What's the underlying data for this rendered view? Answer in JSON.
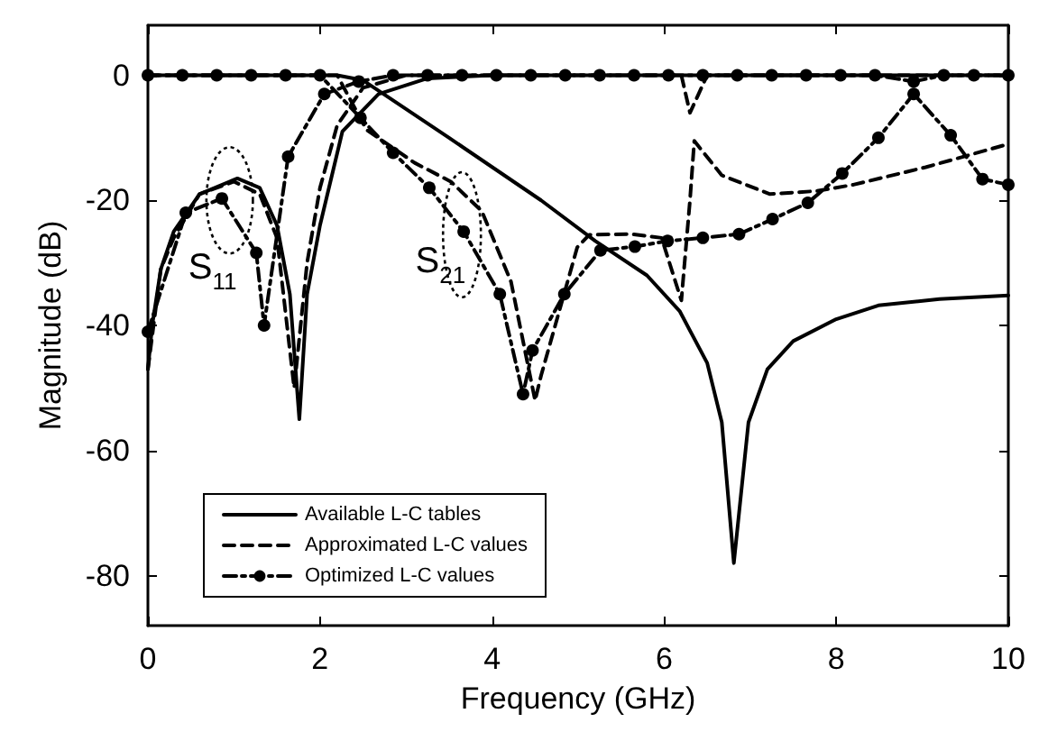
{
  "chart_data": {
    "type": "line",
    "xlabel": "Frequency (GHz)",
    "ylabel": "Magnitude (dB)",
    "xlim": [
      0,
      10
    ],
    "xticks": [
      0,
      2,
      4,
      6,
      8,
      10
    ],
    "ylim": [
      -88,
      8
    ],
    "yticks": [
      0,
      -20,
      -40,
      -60,
      -80
    ],
    "grid": false,
    "legend": "bottom left",
    "annotations": [
      "S$_{11}$",
      "S$_{21}$"
    ],
    "series": [
      {
        "name": "Available L-C tables",
        "color": "#000000",
        "line_style": "solid",
        "marker": "none",
        "x": [
          0,
          0.05,
          0.15,
          0.3,
          0.6,
          1.04,
          1.3,
          1.5,
          1.65,
          1.76,
          1.85,
          2.0,
          2.26,
          2.68,
          3.25,
          4,
          10
        ],
        "values": [
          -47,
          -40,
          -31,
          -25,
          -19,
          -16.5,
          -18,
          -24,
          -35,
          -55,
          -35,
          -24,
          -9,
          -3,
          -0.5,
          0,
          0
        ]
      },
      {
        "color": "#000000",
        "line_style": "solid",
        "marker": "none",
        "x": [
          0,
          2.2,
          2.5,
          2.74,
          3.5,
          4.57,
          5.2,
          5.8,
          6.18,
          6.5,
          6.67,
          6.81,
          6.98,
          7.2,
          7.5,
          8.0,
          8.49,
          9.2,
          10
        ],
        "values": [
          0,
          0,
          -0.8,
          -3,
          -10,
          -20,
          -26.5,
          -32,
          -37.7,
          -46,
          -55.5,
          -78,
          -55.5,
          -47,
          -42.5,
          -39,
          -36.8,
          -35.8,
          -35.2
        ]
      },
      {
        "name": "Approximated L-C values",
        "color": "#000000",
        "line_style": "dashed",
        "marker": "none",
        "x": [
          0,
          0.15,
          0.3,
          0.6,
          1.0,
          1.3,
          1.5,
          1.7,
          1.85,
          2.0,
          2.2,
          2.5,
          3,
          6.2,
          6.3,
          6.4,
          6.5,
          10
        ],
        "values": [
          -47,
          -31,
          -26,
          -19,
          -17,
          -19,
          -26,
          -50,
          -30,
          -18,
          -8,
          -2,
          0,
          0,
          -6,
          -3,
          0,
          0
        ]
      },
      {
        "color": "#000000",
        "line_style": "dashed",
        "marker": "none",
        "x": [
          0,
          2.2,
          2.54,
          3.1,
          3.52,
          3.88,
          4.22,
          4.5,
          4.57,
          4.99,
          5.13,
          5.62,
          5.97,
          6.2,
          6.3,
          6.35,
          6.67,
          7.23,
          7.78,
          8.2,
          9.04,
          10
        ],
        "values": [
          0,
          0,
          -8.7,
          -14,
          -17,
          -21.7,
          -33,
          -52,
          -48,
          -27.5,
          -25.5,
          -25.4,
          -26,
          -36,
          -20,
          -10.5,
          -16,
          -19,
          -18.5,
          -17.5,
          -14.7,
          -11
        ]
      },
      {
        "name": "Optimized L-C values",
        "color": "#000000",
        "line_style": "dotted",
        "marker": "circle",
        "x": [
          0,
          0.44,
          0.86,
          1.26,
          1.35,
          1.63,
          2.05,
          2.45,
          2.85,
          3.25,
          3.65,
          4.05,
          4.45,
          4.85,
          5.25,
          5.65,
          6.05,
          6.45,
          6.85,
          7.25,
          7.65,
          8.05,
          8.45,
          8.9,
          9.25,
          9.6,
          10
        ],
        "values": [
          -41,
          -22,
          -19.7,
          -28.4,
          -40,
          -13,
          -3,
          -1,
          0,
          0,
          0,
          0,
          0,
          0,
          0,
          0,
          0,
          0,
          0,
          0,
          0,
          0,
          0,
          -1,
          0,
          0,
          0
        ]
      },
      {
        "color": "#000000",
        "line_style": "dotted",
        "marker": "circle",
        "x": [
          0,
          0.4,
          0.8,
          1.2,
          1.6,
          2.0,
          2.47,
          2.85,
          3.27,
          3.67,
          4.09,
          4.36,
          4.47,
          4.84,
          5.26,
          5.66,
          6.04,
          6.45,
          6.87,
          7.26,
          7.67,
          8.07,
          8.49,
          8.9,
          9.33,
          9.7,
          10
        ],
        "values": [
          0,
          0,
          0,
          0,
          0,
          0,
          -6.8,
          -12.4,
          -18,
          -25,
          -35,
          -51,
          -44,
          -35,
          -28,
          -27.4,
          -26.5,
          -26,
          -25.4,
          -23,
          -20.4,
          -15.7,
          -10,
          -3,
          -9.6,
          -16.6,
          -17.5
        ]
      }
    ]
  }
}
